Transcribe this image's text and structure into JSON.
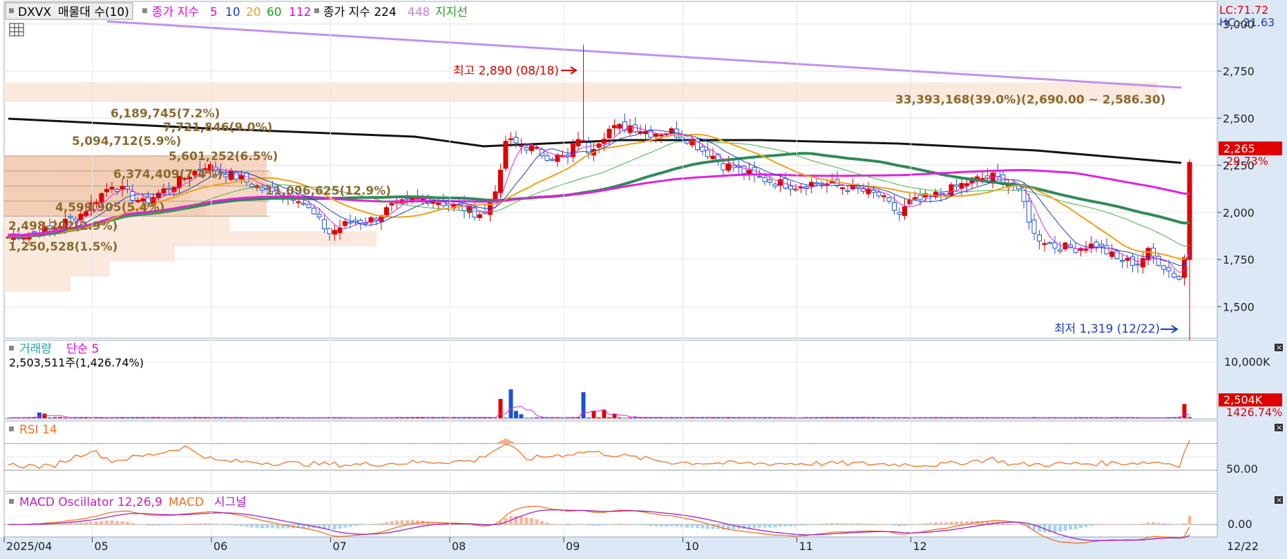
{
  "legend": {
    "symbol": "DXVX",
    "volume_profile": "매물대 수(10)",
    "ma_label": "종가 지수",
    "ma_periods": [
      "5",
      "10",
      "20",
      "60",
      "112"
    ],
    "ma_colors": [
      "#e000e0",
      "#1a3cc8",
      "#f0a010",
      "#20a020",
      "#e000e0"
    ],
    "ma2_label": "종가 지수 224",
    "ma2_extra": "448",
    "support_label": "지지선"
  },
  "corner": {
    "lc": "LC:71.72",
    "hc": "HC:-21.63"
  },
  "price_panel": {
    "ticks": [
      "3,000",
      "2,750",
      "2,500",
      "2,250",
      "2,000",
      "1,750",
      "1,500"
    ],
    "current_price": "2,265",
    "current_change": "29.73%",
    "high_label": "최고 2,890 (08/18)",
    "low_label": "최저 1,319 (12/22)",
    "profile_labels": [
      "33,393,168(39.0%)(2,690.00 ~ 2,586.30)",
      "6,189,745(7.2%)",
      "7,721,846(9.0%)",
      "5,094,712(5.9%)",
      "5,601,252(6.5%)",
      "6,374,409(7.4%)",
      "11,096,625(12.9%)",
      "4,599,905(5.4%)",
      "2,498,202(2.9%)",
      "1,250,528(1.5%)"
    ]
  },
  "volume_panel": {
    "title": "거래량",
    "ma_label": "단순 5",
    "value_text": "2,503,511주(1,426.74%)",
    "tick": "10,000K",
    "last_value": "2,504K",
    "last_change": "1426.74%"
  },
  "rsi_panel": {
    "title": "RSI 14",
    "tick": "50.00"
  },
  "macd_panel": {
    "title": "MACD Oscillator 12,26,9",
    "macd_label": "MACD",
    "signal_label": "시그널",
    "tick": "0.00"
  },
  "x_axis": {
    "labels": [
      "2025/04",
      "05",
      "06",
      "07",
      "08",
      "09",
      "10",
      "11",
      "12"
    ],
    "end_label": "12/22"
  },
  "chart_data": {
    "type": "candlestick",
    "y_range": [
      1340,
      3120
    ],
    "high": 2890,
    "low": 1319,
    "last_close": 2265,
    "volume_profile": [
      {
        "volume": 1250528,
        "pct": 1.5
      },
      {
        "volume": 2498202,
        "pct": 2.9
      },
      {
        "volume": 4599905,
        "pct": 5.4
      },
      {
        "volume": 11096625,
        "pct": 12.9
      },
      {
        "volume": 6374409,
        "pct": 7.4
      },
      {
        "volume": 5601252,
        "pct": 6.5
      },
      {
        "volume": 5094712,
        "pct": 5.9
      },
      {
        "volume": 7721846,
        "pct": 9.0
      },
      {
        "volume": 6189745,
        "pct": 7.2
      },
      {
        "volume": 33393168,
        "pct": 39.0,
        "range": [
          2690.0,
          2586.3
        ]
      }
    ],
    "close_anchors": [
      [
        0,
        1870
      ],
      [
        8,
        1910
      ],
      [
        14,
        1990
      ],
      [
        20,
        2150
      ],
      [
        26,
        2050
      ],
      [
        32,
        2150
      ],
      [
        38,
        2250
      ],
      [
        44,
        2190
      ],
      [
        50,
        2110
      ],
      [
        56,
        2080
      ],
      [
        62,
        1890
      ],
      [
        66,
        1950
      ],
      [
        70,
        1960
      ],
      [
        74,
        2030
      ],
      [
        80,
        2080
      ],
      [
        84,
        2050
      ],
      [
        88,
        2020
      ],
      [
        90,
        2000
      ],
      [
        92,
        1990
      ],
      [
        95,
        2200
      ],
      [
        96,
        2380
      ],
      [
        100,
        2350
      ],
      [
        104,
        2300
      ],
      [
        108,
        2290
      ],
      [
        110,
        2400
      ],
      [
        112,
        2330
      ],
      [
        116,
        2440
      ],
      [
        120,
        2460
      ],
      [
        124,
        2420
      ],
      [
        128,
        2430
      ],
      [
        132,
        2380
      ],
      [
        134,
        2330
      ],
      [
        136,
        2300
      ],
      [
        138,
        2250
      ],
      [
        140,
        2240
      ],
      [
        144,
        2190
      ],
      [
        148,
        2160
      ],
      [
        152,
        2140
      ],
      [
        156,
        2160
      ],
      [
        160,
        2140
      ],
      [
        164,
        2120
      ],
      [
        168,
        2090
      ],
      [
        172,
        1990
      ],
      [
        174,
        2050
      ],
      [
        180,
        2100
      ],
      [
        186,
        2170
      ],
      [
        190,
        2190
      ],
      [
        194,
        2150
      ],
      [
        196,
        2050
      ],
      [
        198,
        1880
      ],
      [
        202,
        1820
      ],
      [
        206,
        1810
      ],
      [
        210,
        1830
      ],
      [
        214,
        1750
      ],
      [
        218,
        1730
      ],
      [
        220,
        1790
      ],
      [
        224,
        1690
      ],
      [
        226,
        1650
      ],
      [
        227,
        1760
      ],
      [
        228,
        2265
      ]
    ],
    "volume_x": [
      95,
      97,
      98,
      99,
      111,
      113,
      115,
      117,
      227
    ],
    "volume_k": [
      3400,
      5100,
      1300,
      700,
      4600,
      1300,
      1500,
      800,
      2504
    ],
    "rsi_anchors": [
      [
        0,
        38
      ],
      [
        8,
        35
      ],
      [
        16,
        60
      ],
      [
        20,
        44
      ],
      [
        28,
        54
      ],
      [
        34,
        65
      ],
      [
        40,
        44
      ],
      [
        56,
        40
      ],
      [
        66,
        38
      ],
      [
        80,
        42
      ],
      [
        90,
        44
      ],
      [
        95,
        65
      ],
      [
        96,
        70
      ],
      [
        100,
        47
      ],
      [
        112,
        58
      ],
      [
        128,
        42
      ],
      [
        140,
        40
      ],
      [
        160,
        40
      ],
      [
        180,
        38
      ],
      [
        190,
        47
      ],
      [
        194,
        38
      ],
      [
        210,
        40
      ],
      [
        222,
        42
      ],
      [
        226,
        38
      ],
      [
        228,
        75
      ]
    ]
  }
}
